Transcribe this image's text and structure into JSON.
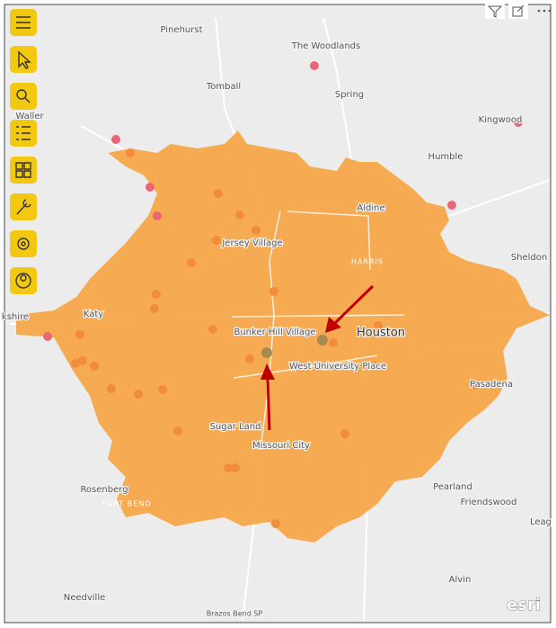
{
  "map": {
    "labels": [
      "Pinehurst",
      "The Woodlands",
      "Tomball",
      "Spring",
      "Waller",
      "Kingwood",
      "Humble",
      "Aldine",
      "Jersey Village",
      "HARRIS",
      "Sheldon",
      "Katy",
      "kshire",
      "Houston",
      "Bunker Hill Village",
      "West University Place",
      "Pasadena",
      "Sugar Land",
      "Missouri City",
      "Rosenberg",
      "FORT BEND",
      "Pearland",
      "Friendswood",
      "Leag",
      "Alvin",
      "Needville",
      "Brazos Bend SP"
    ],
    "attribution": "esri"
  }
}
